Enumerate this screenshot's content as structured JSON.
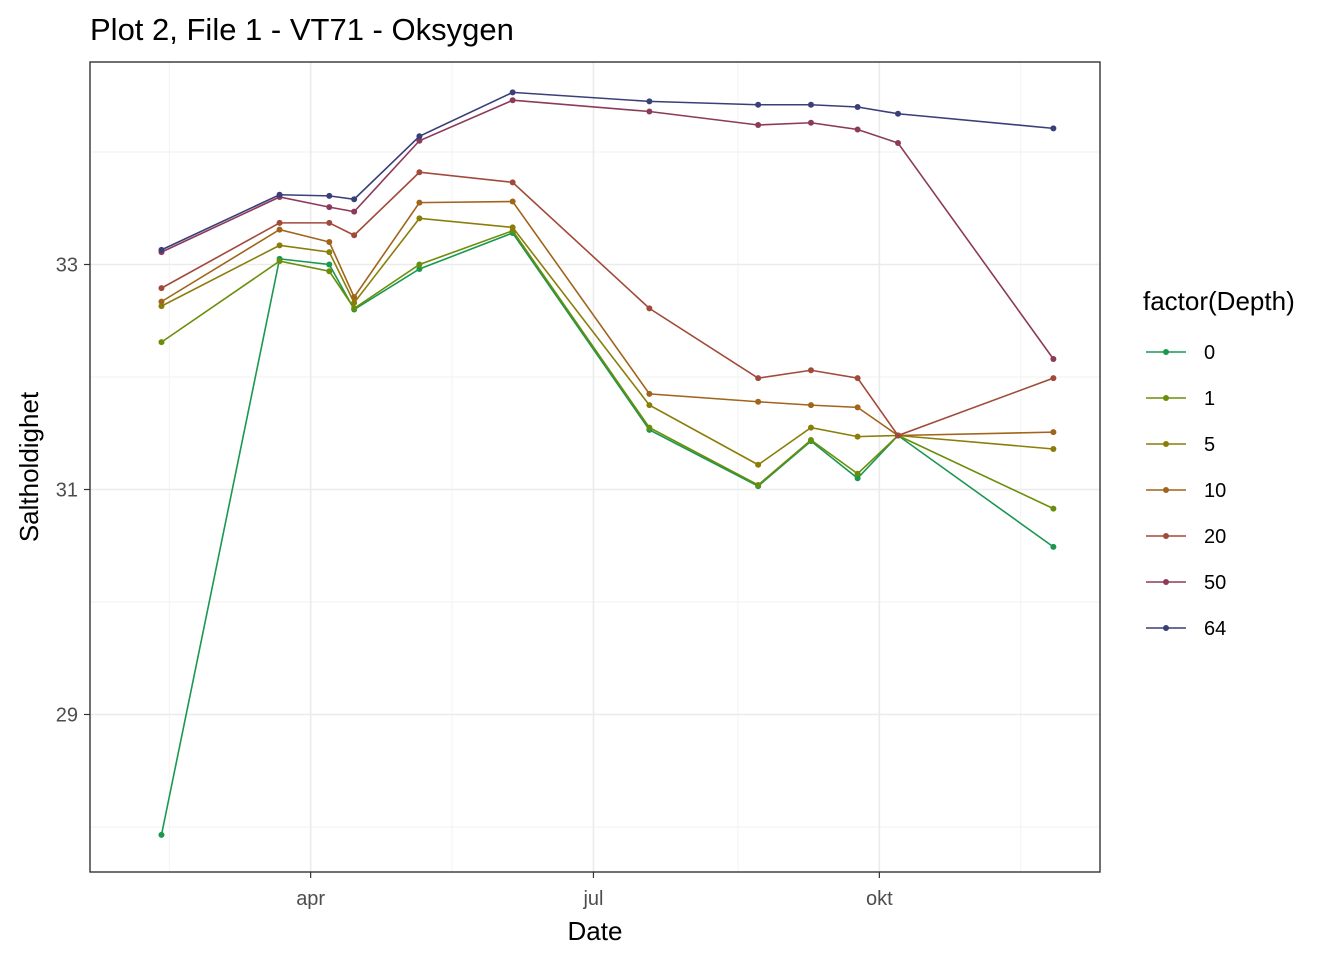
{
  "chart_data": {
    "type": "line",
    "title": "Plot 2, File 1 - VT71  -  Oksygen",
    "xlabel": "Date",
    "ylabel": "Saltholdighet",
    "x_ticks": [
      {
        "label": "apr",
        "date": "2019-04-01"
      },
      {
        "label": "jul",
        "date": "2019-07-01"
      },
      {
        "label": "okt",
        "date": "2019-10-01"
      }
    ],
    "y_ticks": [
      29,
      31,
      33
    ],
    "xlim": [
      "2019-01-20",
      "2019-12-11"
    ],
    "ylim": [
      27.6,
      34.8
    ],
    "grid": true,
    "legend": {
      "title": "factor(Depth)",
      "position": "right"
    },
    "x": [
      "2019-02-12",
      "2019-03-22",
      "2019-04-07",
      "2019-04-15",
      "2019-05-06",
      "2019-06-05",
      "2019-07-19",
      "2019-08-23",
      "2019-09-09",
      "2019-09-24",
      "2019-10-07",
      "2019-11-26"
    ],
    "series": [
      {
        "name": "0",
        "color": "#1a9850",
        "values": [
          27.93,
          33.05,
          33.0,
          32.6,
          32.96,
          33.28,
          31.53,
          31.03,
          31.43,
          31.1,
          31.48,
          30.49
        ]
      },
      {
        "name": "1",
        "color": "#6b8e0a",
        "values": [
          32.31,
          33.03,
          32.94,
          32.61,
          33.0,
          33.3,
          31.55,
          31.04,
          31.44,
          31.14,
          31.48,
          30.83
        ]
      },
      {
        "name": "5",
        "color": "#8b7d0a",
        "values": [
          32.63,
          33.17,
          33.11,
          32.66,
          33.41,
          33.33,
          31.75,
          31.22,
          31.55,
          31.47,
          31.48,
          31.36
        ]
      },
      {
        "name": "10",
        "color": "#a0641a",
        "values": [
          32.67,
          33.31,
          33.2,
          32.71,
          33.55,
          33.56,
          31.85,
          31.78,
          31.75,
          31.73,
          31.48,
          31.51
        ]
      },
      {
        "name": "20",
        "color": "#a04a3a",
        "values": [
          32.79,
          33.37,
          33.37,
          33.26,
          33.82,
          33.73,
          32.61,
          31.99,
          32.06,
          31.99,
          31.48,
          31.99
        ]
      },
      {
        "name": "50",
        "color": "#8c3a5a",
        "values": [
          33.11,
          33.6,
          33.51,
          33.47,
          34.1,
          34.46,
          34.36,
          34.24,
          34.26,
          34.2,
          34.08,
          32.16
        ]
      },
      {
        "name": "64",
        "color": "#3a3f7a",
        "values": [
          33.13,
          33.62,
          33.61,
          33.58,
          34.14,
          34.53,
          34.45,
          34.42,
          34.42,
          34.4,
          34.34,
          34.21
        ]
      }
    ]
  }
}
